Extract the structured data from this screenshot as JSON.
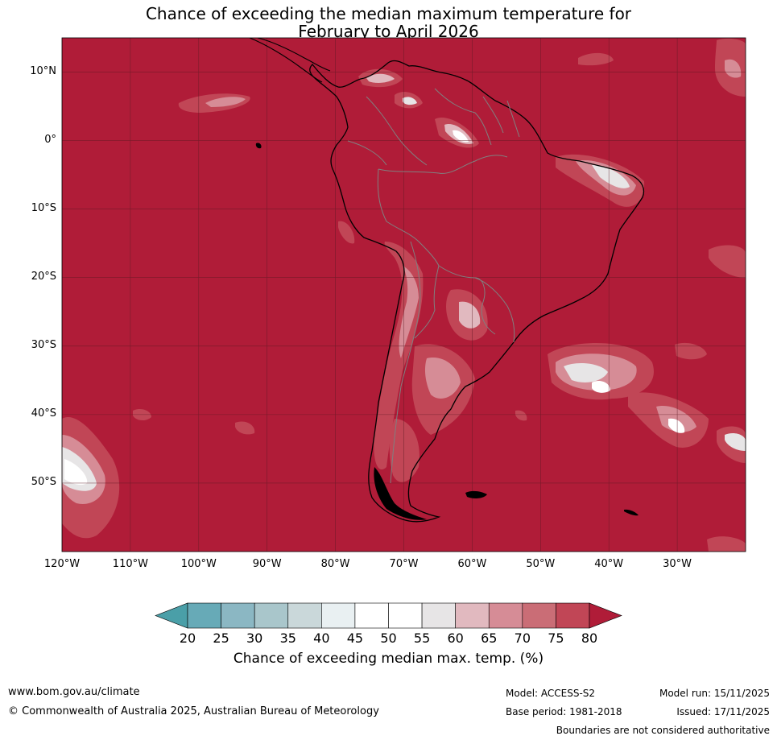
{
  "title_line1": "Chance of exceeding the median maximum temperature for",
  "title_line2": "February to April 2026",
  "map": {
    "lon_range": [
      -120,
      -20
    ],
    "lat_range": [
      -60,
      15
    ],
    "base_color": "#b01c38",
    "land_outline_color": "#000000",
    "border_color": "#808080"
  },
  "lat_labels": [
    {
      "lat": 10,
      "text": "10°N"
    },
    {
      "lat": 0,
      "text": "0°"
    },
    {
      "lat": -10,
      "text": "10°S"
    },
    {
      "lat": -20,
      "text": "20°S"
    },
    {
      "lat": -30,
      "text": "30°S"
    },
    {
      "lat": -40,
      "text": "40°S"
    },
    {
      "lat": -50,
      "text": "50°S"
    }
  ],
  "lon_labels": [
    {
      "lon": -120,
      "text": "120°W"
    },
    {
      "lon": -110,
      "text": "110°W"
    },
    {
      "lon": -100,
      "text": "100°W"
    },
    {
      "lon": -90,
      "text": "90°W"
    },
    {
      "lon": -80,
      "text": "80°W"
    },
    {
      "lon": -70,
      "text": "70°W"
    },
    {
      "lon": -60,
      "text": "60°W"
    },
    {
      "lon": -50,
      "text": "50°W"
    },
    {
      "lon": -40,
      "text": "40°W"
    },
    {
      "lon": -30,
      "text": "30°W"
    }
  ],
  "colorbar": {
    "ticks": [
      "20",
      "25",
      "30",
      "35",
      "40",
      "45",
      "50",
      "55",
      "60",
      "65",
      "70",
      "75",
      "80"
    ],
    "below_color": "#4a9fa8",
    "above_color": "#b01c38",
    "colors": [
      "#67aab7",
      "#8bb7c3",
      "#a9c6cb",
      "#cad8da",
      "#e9f0f2",
      "#ffffff",
      "#ffffff",
      "#e7e5e6",
      "#e1b9bf",
      "#d68c96",
      "#ca6d76",
      "#c14656"
    ],
    "label": "Chance of exceeding median max. temp. (%)"
  },
  "footer": {
    "website": "www.bom.gov.au/climate",
    "copyright": "© Commonwealth of Australia 2025, Australian Bureau of Meteorology",
    "model": "Model: ACCESS-S2",
    "base_period": "Base period: 1981-2018",
    "model_run": "Model run: 15/11/2025",
    "issued": "Issued: 17/11/2025",
    "disclaimer": "Boundaries are not considered authoritative"
  }
}
